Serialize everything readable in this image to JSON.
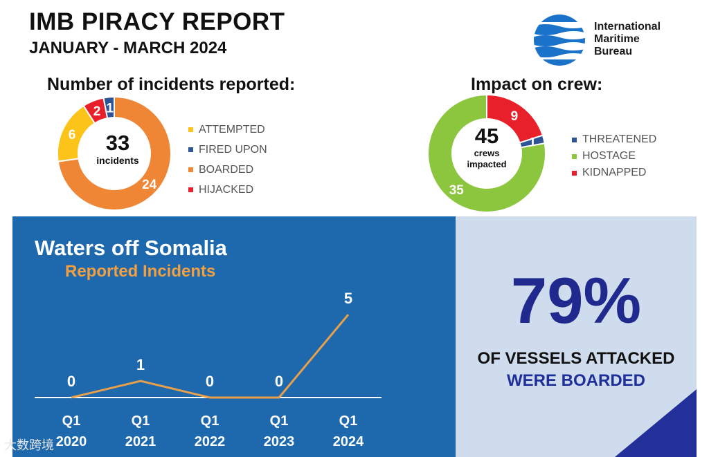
{
  "header": {
    "title": "IMB PIRACY REPORT",
    "subtitle": "JANUARY - MARCH 2024"
  },
  "logo": {
    "line1": "International",
    "line2": "Maritime",
    "line3": "Bureau",
    "color": "#1a73c9"
  },
  "incidents": {
    "heading": "Number of incidents reported:",
    "total": "33",
    "total_label": "incidents"
  },
  "crew": {
    "heading": "Impact on crew:",
    "total": "45",
    "total_label_1": "crews",
    "total_label_2": "impacted"
  },
  "somalia": {
    "title": "Waters off Somalia",
    "subtitle": "Reported Incidents"
  },
  "stat": {
    "percent": "79%",
    "line1": "OF VESSELS ATTACKED",
    "line2": "WERE BOARDED"
  },
  "watermark": "大数跨境",
  "chart_data": [
    {
      "type": "pie",
      "title": "Number of incidents reported:",
      "slices": [
        {
          "label": "BOARDED",
          "value": 24,
          "color": "#ee8636"
        },
        {
          "label": "ATTEMPTED",
          "value": 6,
          "color": "#fcc419"
        },
        {
          "label": "HIJACKED",
          "value": 2,
          "color": "#e8202a"
        },
        {
          "label": "FIRED UPON",
          "value": 1,
          "color": "#2f5496"
        }
      ],
      "legend_order": [
        "ATTEMPTED",
        "FIRED UPON",
        "BOARDED",
        "HIJACKED"
      ],
      "legend": "right"
    },
    {
      "type": "pie",
      "title": "Impact on crew:",
      "slices": [
        {
          "label": "KIDNAPPED",
          "value": 9,
          "color": "#e8202a"
        },
        {
          "label": "THREATENED",
          "value": 1,
          "color": "#2f5496"
        },
        {
          "label": "HOSTAGE",
          "value": 35,
          "color": "#8cc63f"
        }
      ],
      "legend_order": [
        "THREATENED",
        "HOSTAGE",
        "KIDNAPPED"
      ],
      "legend": "right"
    },
    {
      "type": "line",
      "title": "Waters off Somalia",
      "subtitle": "Reported Incidents",
      "categories": [
        "Q1 2020",
        "Q1 2021",
        "Q1 2022",
        "Q1 2023",
        "Q1 2024"
      ],
      "tick_lines": [
        [
          "Q1",
          "2020"
        ],
        [
          "Q1",
          "2021"
        ],
        [
          "Q1",
          "2022"
        ],
        [
          "Q1",
          "2023"
        ],
        [
          "Q1",
          "2024"
        ]
      ],
      "values": [
        0,
        1,
        0,
        0,
        5
      ],
      "ylim": [
        0,
        5
      ],
      "line_color": "#e8a04a",
      "grid": false
    }
  ]
}
